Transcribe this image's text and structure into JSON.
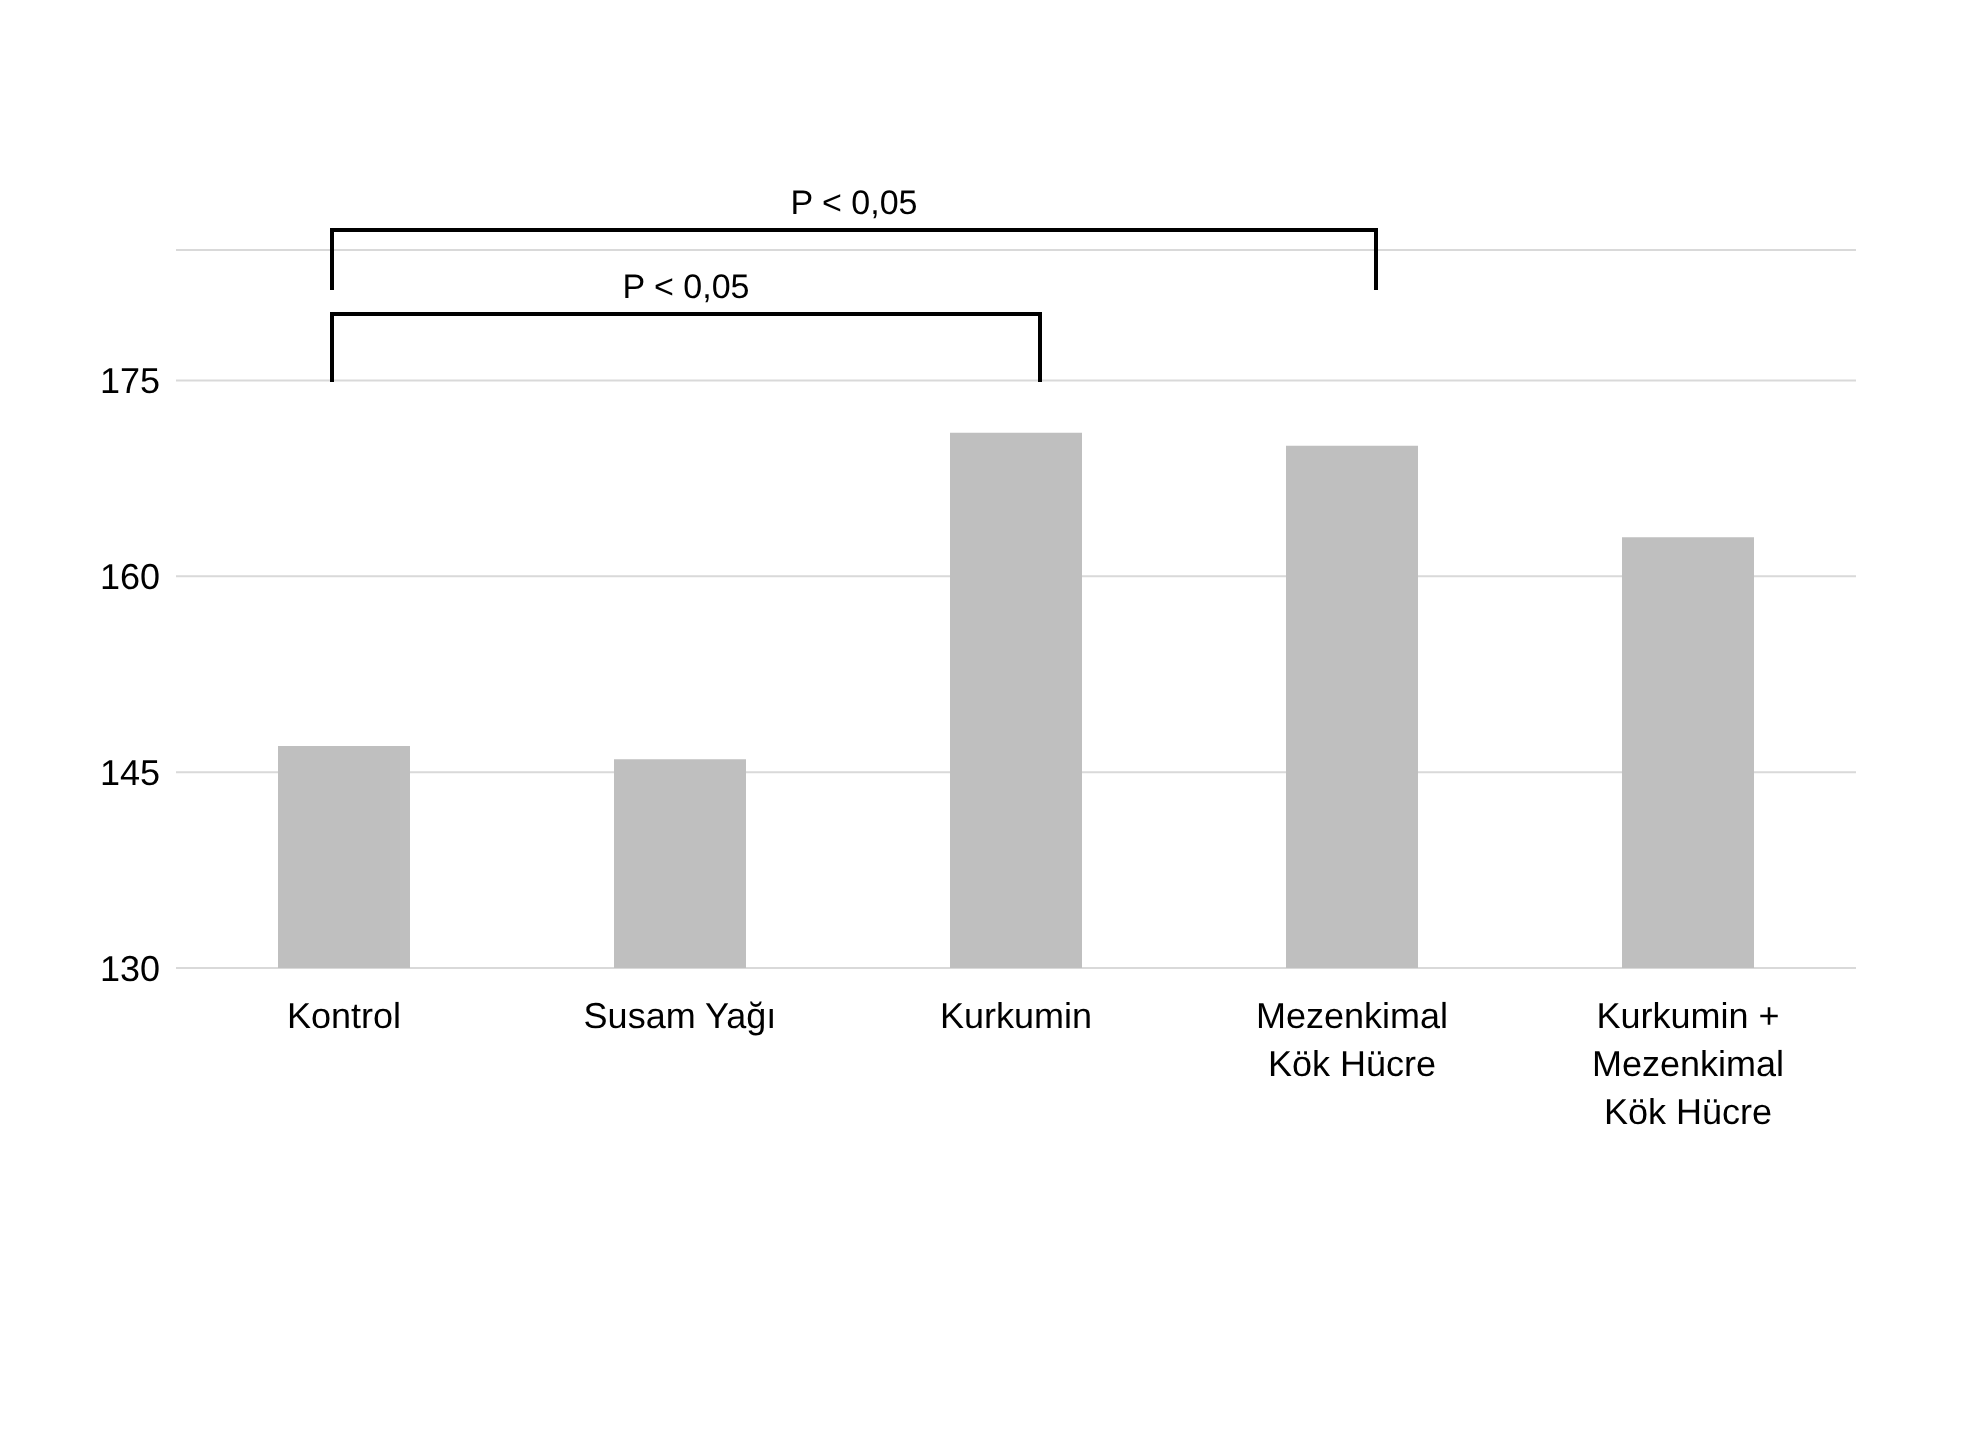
{
  "chart_data": {
    "type": "bar",
    "categories": [
      "Kontrol",
      "Susam Yağı",
      "Kurkumin",
      "Mezenkimal Kök Hücre",
      "Kurkumin + Mezenkimal Kök Hücre"
    ],
    "values": [
      147,
      146,
      171,
      170,
      163
    ],
    "color": "#bfbfbf",
    "ylim": [
      130,
      185
    ],
    "yticks": [
      130,
      145,
      160,
      175
    ],
    "grid": "y",
    "annotations": [
      "P < 0,05",
      "P < 0,05"
    ]
  }
}
